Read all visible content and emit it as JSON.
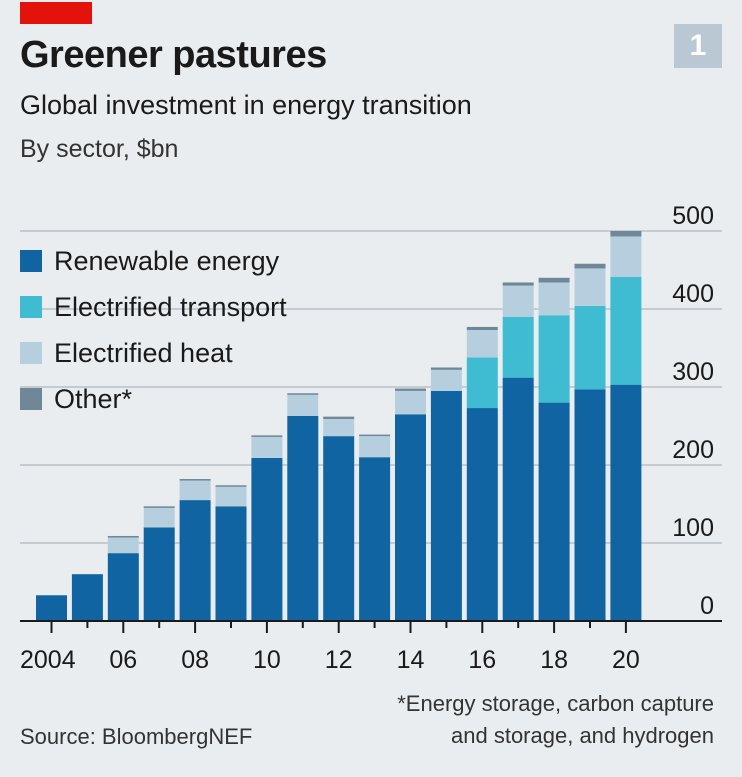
{
  "header": {
    "figure_number": "1",
    "title": "Greener pastures",
    "subtitle": "Global investment in energy transition",
    "unit": "By sector, $bn"
  },
  "colors": {
    "renewable": "#0f64a1",
    "transport": "#3fbcd2",
    "heat": "#b6cfdf",
    "other": "#6f8796",
    "background": "#e9edf0",
    "gridline": "#c4ccd2",
    "axis": "#1a1a1a",
    "accent": "#e3120b"
  },
  "legend": [
    {
      "label": "Renewable energy",
      "color": "#0f64a1"
    },
    {
      "label": "Electrified transport",
      "color": "#3fbcd2"
    },
    {
      "label": "Electrified heat",
      "color": "#b6cfdf"
    },
    {
      "label": "Other*",
      "color": "#6f8796"
    }
  ],
  "chart_data": {
    "type": "bar",
    "stacked": true,
    "title": "Global investment in energy transition",
    "ylabel": "By sector, $bn",
    "ylim": [
      0,
      500
    ],
    "yticks": [
      0,
      100,
      200,
      300,
      400,
      500
    ],
    "grid": true,
    "legend_position": "top-left",
    "x": [
      2004,
      2005,
      2006,
      2007,
      2008,
      2009,
      2010,
      2011,
      2012,
      2013,
      2014,
      2015,
      2016,
      2017,
      2018,
      2019,
      2020
    ],
    "xtick_labels": [
      {
        "year": 2004,
        "label": "2004"
      },
      {
        "year": 2006,
        "label": "06"
      },
      {
        "year": 2008,
        "label": "08"
      },
      {
        "year": 2010,
        "label": "10"
      },
      {
        "year": 2012,
        "label": "12"
      },
      {
        "year": 2014,
        "label": "14"
      },
      {
        "year": 2016,
        "label": "16"
      },
      {
        "year": 2018,
        "label": "18"
      },
      {
        "year": 2020,
        "label": "20"
      }
    ],
    "series": [
      {
        "name": "Renewable energy",
        "values": [
          33,
          60,
          87,
          120,
          155,
          147,
          209,
          263,
          237,
          210,
          265,
          295,
          273,
          312,
          280,
          297,
          303
        ]
      },
      {
        "name": "Electrified transport",
        "values": [
          0,
          0,
          0,
          0,
          0,
          0,
          0,
          0,
          0,
          0,
          0,
          0,
          65,
          78,
          112,
          107,
          138
        ]
      },
      {
        "name": "Electrified heat",
        "values": [
          0,
          0,
          20,
          25,
          25,
          25,
          27,
          27,
          22,
          27,
          30,
          27,
          35,
          40,
          42,
          48,
          52
        ]
      },
      {
        "name": "Other*",
        "values": [
          0,
          0,
          2,
          2,
          2,
          2,
          2,
          2,
          3,
          2,
          3,
          3,
          4,
          4,
          6,
          6,
          7
        ]
      }
    ]
  },
  "footnote": {
    "line1": "*Energy storage, carbon capture",
    "line2": "and storage, and hydrogen"
  },
  "source": "Source: BloombergNEF"
}
